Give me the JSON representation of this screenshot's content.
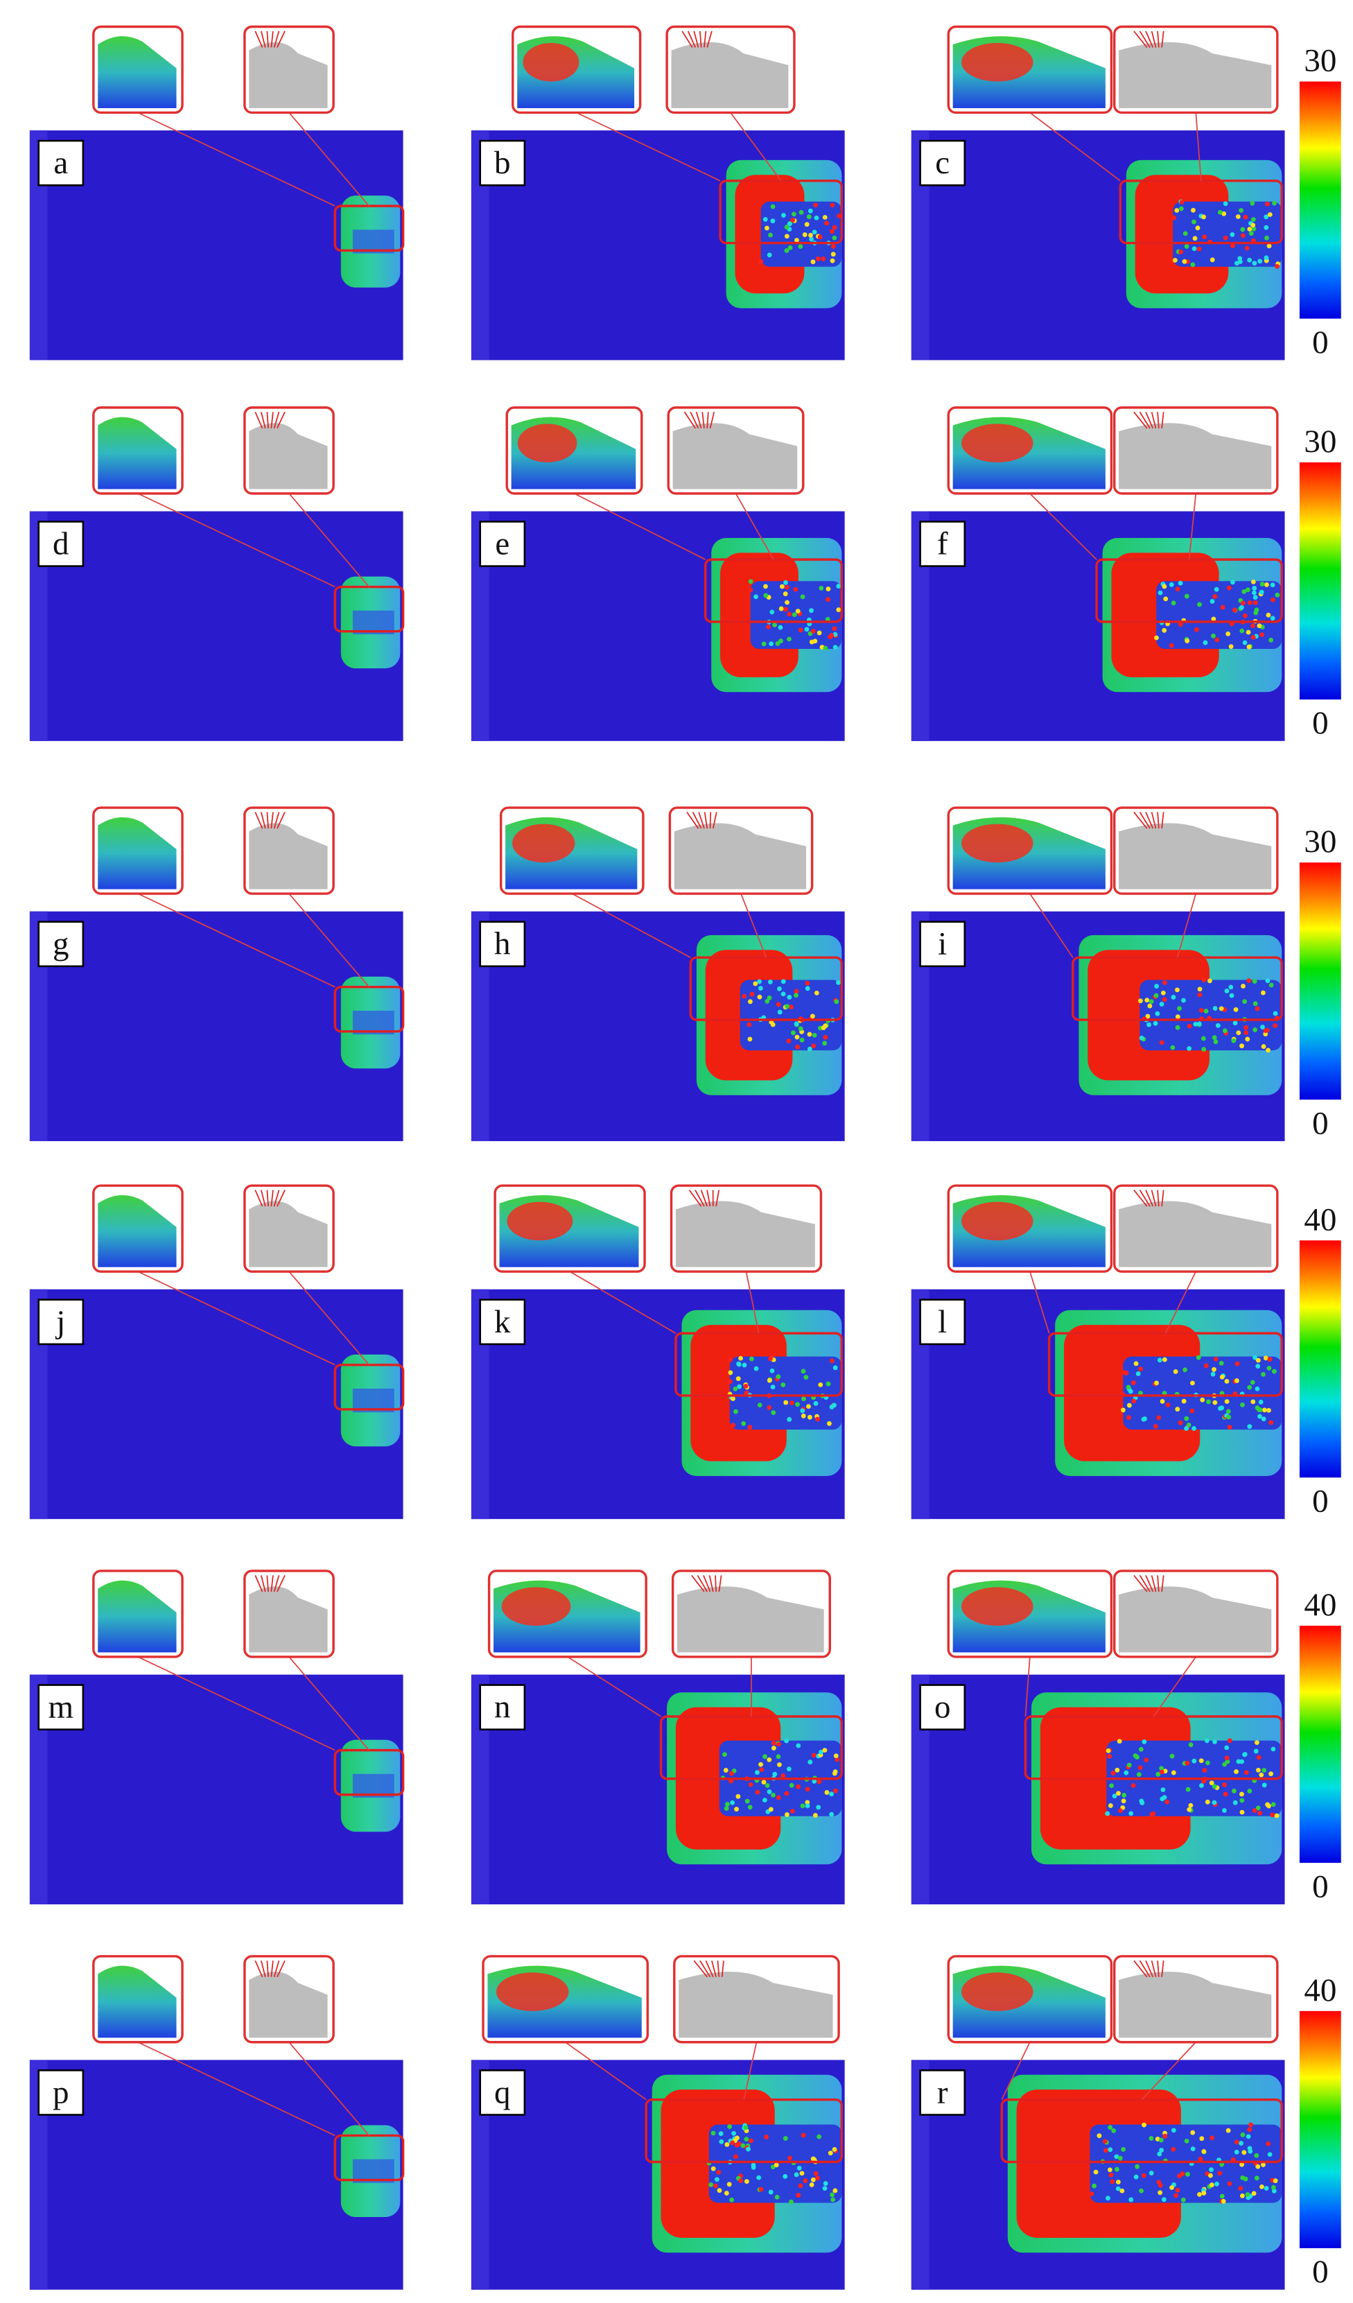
{
  "panels": [
    {
      "label": "a"
    },
    {
      "label": "b"
    },
    {
      "label": "c"
    },
    {
      "label": "d"
    },
    {
      "label": "e"
    },
    {
      "label": "f"
    },
    {
      "label": "g"
    },
    {
      "label": "h"
    },
    {
      "label": "i"
    },
    {
      "label": "j"
    },
    {
      "label": "k"
    },
    {
      "label": "l"
    },
    {
      "label": "m"
    },
    {
      "label": "n"
    },
    {
      "label": "o"
    },
    {
      "label": "p"
    },
    {
      "label": "q"
    },
    {
      "label": "r"
    }
  ],
  "colorbars": [
    {
      "max": 30,
      "min": 0
    },
    {
      "max": 30,
      "min": 0
    },
    {
      "max": 30,
      "min": 0
    },
    {
      "max": 40,
      "min": 0
    },
    {
      "max": 40,
      "min": 0
    },
    {
      "max": 40,
      "min": 0
    }
  ]
}
